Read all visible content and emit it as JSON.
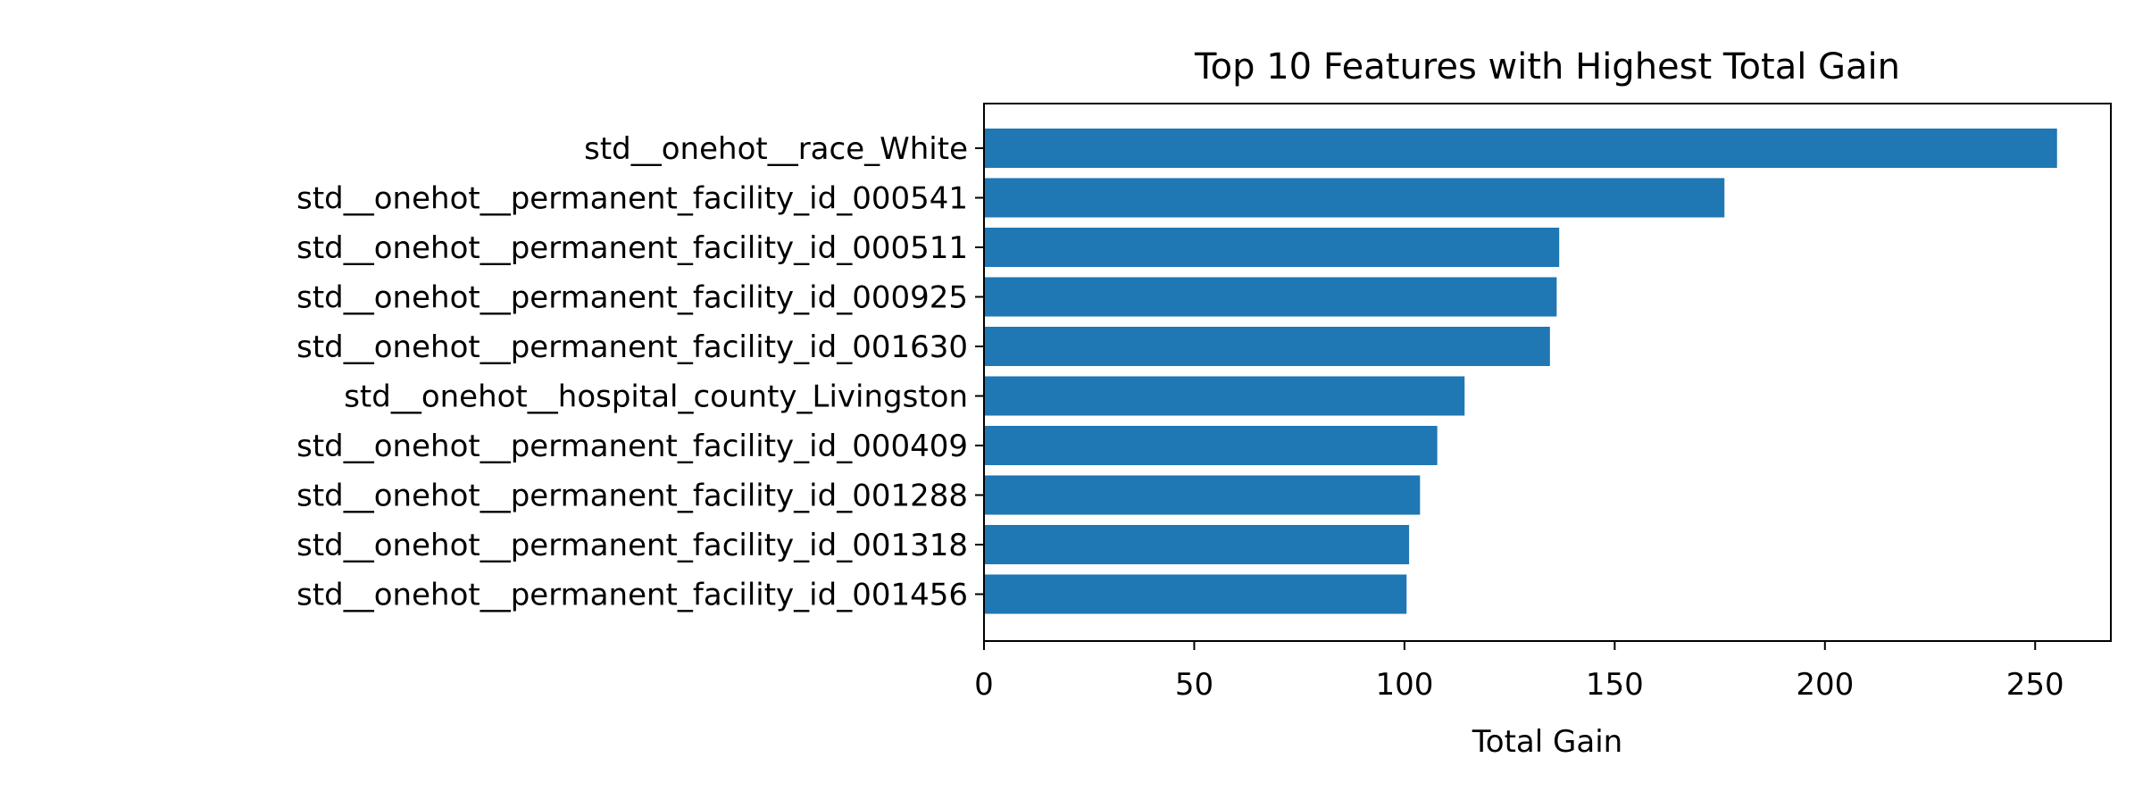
{
  "chart_data": {
    "type": "bar",
    "orientation": "horizontal",
    "title": "Top 10 Features with Highest Total Gain",
    "xlabel": "Total Gain",
    "ylabel": "",
    "categories": [
      "std__onehot__race_White",
      "std__onehot__permanent_facility_id_000541",
      "std__onehot__permanent_facility_id_000511",
      "std__onehot__permanent_facility_id_000925",
      "std__onehot__permanent_facility_id_001630",
      "std__onehot__hospital_county_Livingston",
      "std__onehot__permanent_facility_id_000409",
      "std__onehot__permanent_facility_id_001288",
      "std__onehot__permanent_facility_id_001318",
      "std__onehot__permanent_facility_id_001456"
    ],
    "values": [
      255.2,
      176.1,
      136.8,
      136.2,
      134.6,
      114.3,
      107.8,
      103.7,
      101.1,
      100.5
    ],
    "xlim": [
      0,
      268
    ],
    "xticks": [
      0,
      50,
      100,
      150,
      200,
      250
    ],
    "grid": false,
    "bar_color": "#1f77b4"
  }
}
